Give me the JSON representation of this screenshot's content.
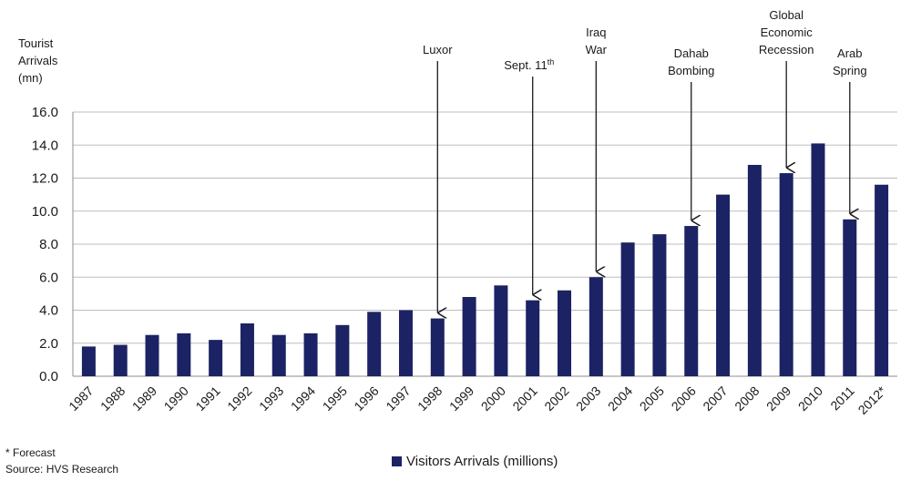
{
  "chart_data": {
    "type": "bar",
    "ylabel_lines": [
      "Tourist",
      "Arrivals",
      "(mn)"
    ],
    "ylim": [
      0,
      16
    ],
    "yticks": [
      "0.0",
      "2.0",
      "4.0",
      "6.0",
      "8.0",
      "10.0",
      "12.0",
      "14.0",
      "16.0"
    ],
    "grid": true,
    "categories": [
      "1987",
      "1988",
      "1989",
      "1990",
      "1991",
      "1992",
      "1993",
      "1994",
      "1995",
      "1996",
      "1997",
      "1998",
      "1999",
      "2000",
      "2001",
      "2002",
      "2003",
      "2004",
      "2005",
      "2006",
      "2007",
      "2008",
      "2009",
      "2010",
      "2011",
      "2012*"
    ],
    "series": [
      {
        "name": "Visitors Arrivals (millions)",
        "color": "#1b2364",
        "values": [
          1.8,
          1.9,
          2.5,
          2.6,
          2.2,
          3.2,
          2.5,
          2.6,
          3.1,
          3.9,
          4.0,
          3.5,
          4.8,
          5.5,
          4.6,
          5.2,
          6.0,
          8.1,
          8.6,
          9.1,
          11.0,
          12.8,
          12.3,
          14.1,
          9.5,
          11.6
        ]
      }
    ],
    "legend_position": "bottom",
    "annotations": [
      {
        "category": "1998",
        "label_lines": [
          "Luxor"
        ]
      },
      {
        "category": "2001",
        "label_lines": [
          "Sept. 11",
          "th"
        ]
      },
      {
        "category": "2003",
        "label_lines": [
          "Iraq",
          "War"
        ]
      },
      {
        "category": "2006",
        "label_lines": [
          "Dahab",
          "Bombing"
        ]
      },
      {
        "category": "2009",
        "label_lines": [
          "Global",
          "Economic",
          "Recession"
        ]
      },
      {
        "category": "2011",
        "label_lines": [
          "Arab",
          "Spring"
        ]
      }
    ]
  },
  "footnotes": {
    "forecast": "* Forecast",
    "source": "Source: HVS Research"
  }
}
